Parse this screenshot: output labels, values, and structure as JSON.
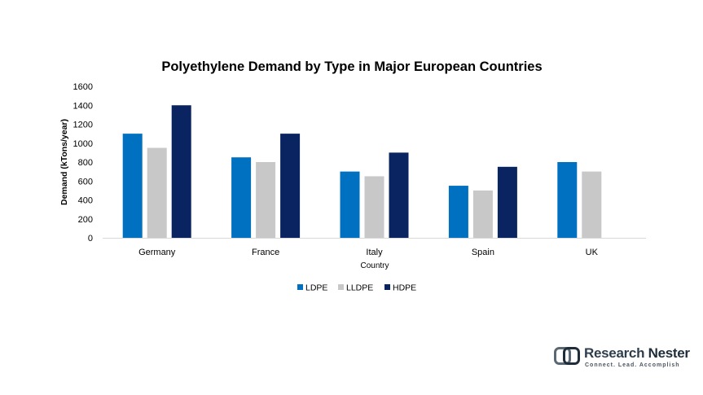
{
  "chart_data": {
    "type": "bar",
    "title": "Polyethylene Demand by Type in Major European Countries",
    "xlabel": "Country",
    "ylabel": "Demand (kTons/year)",
    "categories": [
      "Germany",
      "France",
      "Italy",
      "Spain",
      "UK"
    ],
    "series": [
      {
        "name": "LDPE",
        "color": "#0070c0",
        "values": [
          1100,
          850,
          700,
          550,
          800
        ]
      },
      {
        "name": "LLDPE",
        "color": "#c8c8c8",
        "values": [
          950,
          800,
          650,
          500,
          700
        ]
      },
      {
        "name": "HDPE",
        "color": "#0a2462",
        "values": [
          1400,
          1100,
          900,
          750,
          null
        ]
      }
    ],
    "ylim": [
      0,
      1600
    ],
    "yticks": [
      0,
      200,
      400,
      600,
      800,
      1000,
      1200,
      1400,
      1600
    ],
    "grid": false,
    "legend_position": "bottom"
  },
  "brand": {
    "name_part1": "Research",
    "name_part2": "Nester",
    "tagline": "Connect. Lead. Accomplish",
    "icon": "research-nester-logo-icon"
  }
}
